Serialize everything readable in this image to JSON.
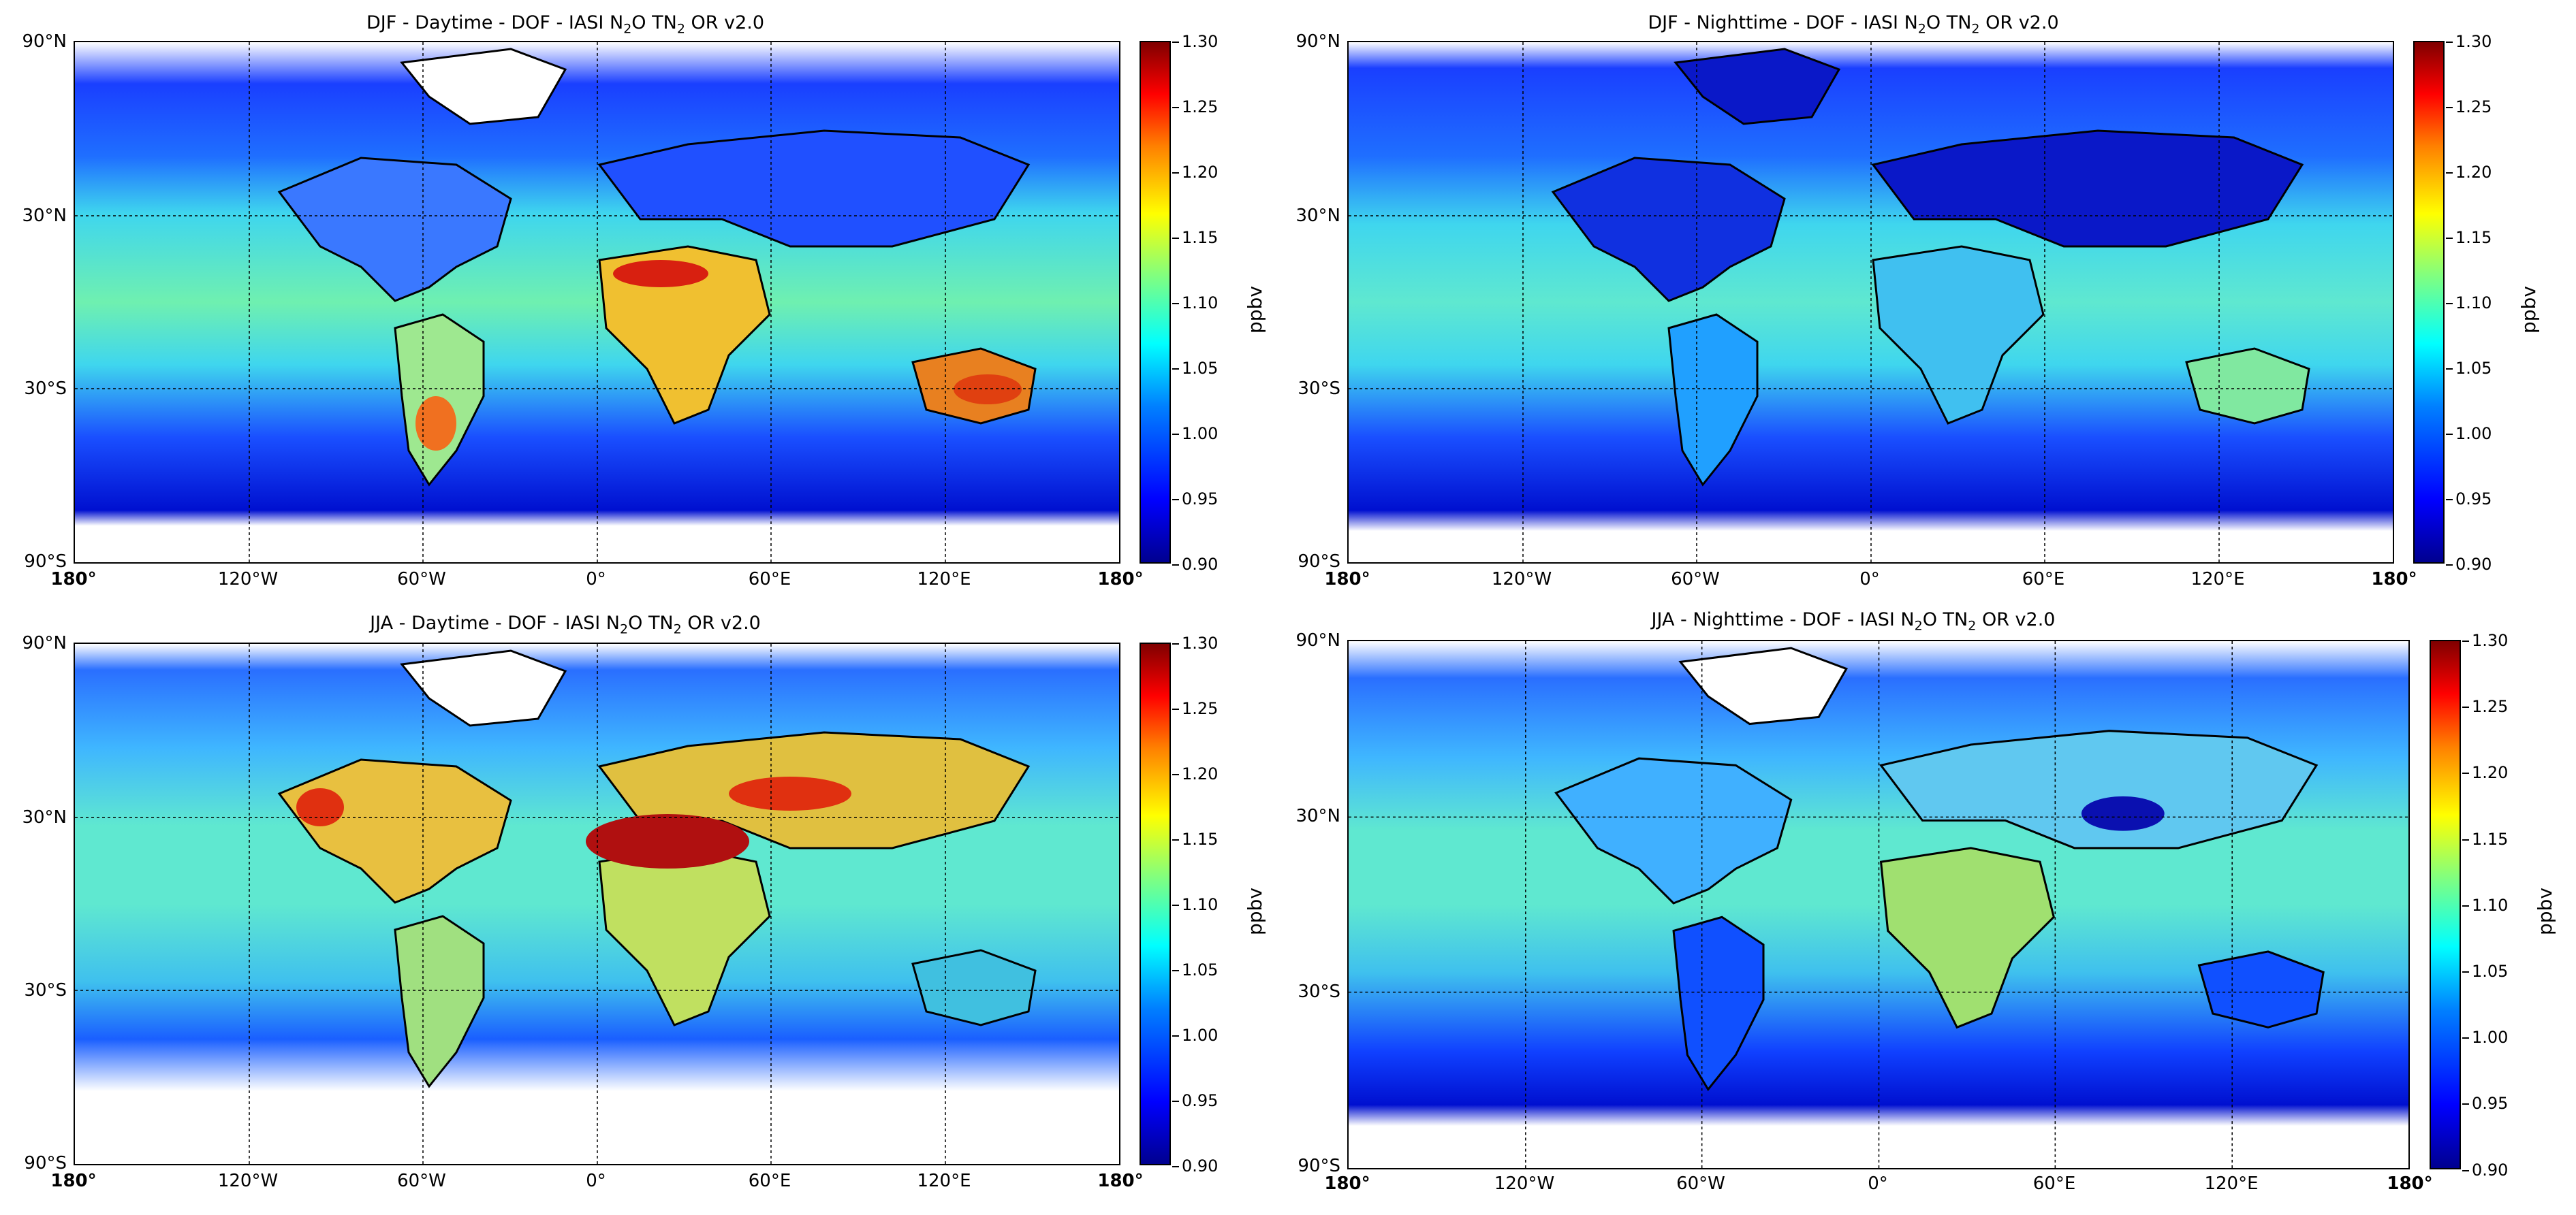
{
  "colors": {
    "ocean_tropics": "#4fe3d0",
    "ocean_high_lat": "#1a4fff",
    "land_dark": "#0a10c8",
    "hot": "#e03010",
    "mid": "#f0d020",
    "coast": "#000000",
    "missing": "#ffffff"
  },
  "panels": [
    {
      "id": "djf-day",
      "title_pre": "DJF - Daytime - DOF - IASI N",
      "title_sub": "2",
      "title_mid": "O TN",
      "title_sub2": "2",
      "title_post": "OR v2.0"
    },
    {
      "id": "djf-night",
      "title_pre": "DJF - Nighttime - DOF - IASI N",
      "title_sub": "2",
      "title_mid": "O TN",
      "title_sub2": "2",
      "title_post": "OR v2.0"
    },
    {
      "id": "jja-day",
      "title_pre": "JJA - Daytime - DOF - IASI N",
      "title_sub": "2",
      "title_mid": "O TN",
      "title_sub2": "2",
      "title_post": "OR v2.0"
    },
    {
      "id": "jja-night",
      "title_pre": "JJA - Nighttime - DOF - IASI N",
      "title_sub": "2",
      "title_mid": "O TN",
      "title_sub2": "2",
      "title_post": "OR v2.0"
    }
  ],
  "axes": {
    "lat_ticks": [
      "90°N",
      "30°N",
      "30°S",
      "90°S"
    ],
    "lon_ticks": [
      "180°",
      "120°W",
      "60°W",
      "0°",
      "60°E",
      "120°E",
      "180°"
    ]
  },
  "colorbar": {
    "ticks": [
      "1.30",
      "1.25",
      "1.20",
      "1.15",
      "1.10",
      "1.05",
      "1.00",
      "0.95",
      "0.90"
    ],
    "unit": "ppbv",
    "range": [
      0.9,
      1.3
    ]
  }
}
